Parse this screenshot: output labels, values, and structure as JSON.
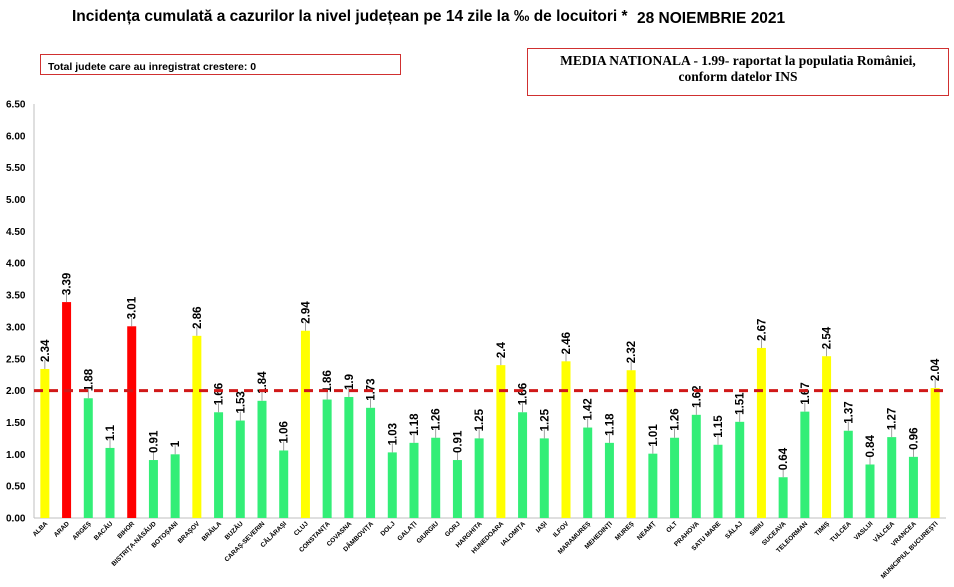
{
  "title": "Incidența cumulată a cazurilor la nivel județean pe 14 zile la ‰ de locuitori *",
  "date": "28 NOIEMBRIE 2021",
  "growth_box": "Total judete care au inregistrat crestere: 0",
  "national_box": {
    "line1": "MEDIA NATIONALA - 1.99-  raportat la populatia României,",
    "line2": "conform datelor INS"
  },
  "colors": {
    "high": "#ff0000",
    "medium": "#ffff00",
    "low": "#33ee77",
    "average_line": "#d01818",
    "label_leader": "#888888"
  },
  "chart_data": {
    "type": "bar",
    "title": "Incidența cumulată a cazurilor la nivel județean pe 14 zile la ‰ de locuitori *",
    "ylim": [
      0,
      6.5
    ],
    "yticks": [
      "0.00",
      "0.50",
      "1.00",
      "1.50",
      "2.00",
      "2.50",
      "3.00",
      "3.50",
      "4.00",
      "4.50",
      "5.00",
      "5.50",
      "6.00",
      "6.50"
    ],
    "average_line": 2.0,
    "grid": false,
    "categories": [
      "ALBA",
      "ARAD",
      "ARGEȘ",
      "BACĂU",
      "BIHOR",
      "BISTRIȚA-NĂSĂUD",
      "BOTOȘANI",
      "BRAȘOV",
      "BRĂILA",
      "BUZĂU",
      "CARAȘ-SEVERIN",
      "CĂLĂRAȘI",
      "CLUJ",
      "CONSTANȚA",
      "COVASNA",
      "DÂMBOVIȚA",
      "DOLJ",
      "GALAȚI",
      "GIURGIU",
      "GORJ",
      "HARGHITA",
      "HUNEDOARA",
      "IALOMIȚA",
      "IAȘI",
      "ILFOV",
      "MARAMUREȘ",
      "MEHEDINȚI",
      "MUREȘ",
      "NEAMȚ",
      "OLT",
      "PRAHOVA",
      "SATU MARE",
      "SĂLAJ",
      "SIBIU",
      "SUCEAVA",
      "TELEORMAN",
      "TIMIȘ",
      "TULCEA",
      "VASLUI",
      "VÂLCEA",
      "VRANCEA",
      "MUNICIPIUL BUCUREȘTI"
    ],
    "values": [
      2.34,
      3.39,
      1.88,
      1.1,
      3.01,
      0.91,
      1,
      2.86,
      1.66,
      1.53,
      1.84,
      1.06,
      2.94,
      1.86,
      1.9,
      1.73,
      1.03,
      1.18,
      1.26,
      0.91,
      1.25,
      2.4,
      1.66,
      1.25,
      2.46,
      1.42,
      1.18,
      2.32,
      1.01,
      1.26,
      1.62,
      1.15,
      1.51,
      2.67,
      0.64,
      1.67,
      2.54,
      1.37,
      0.84,
      1.27,
      0.96,
      2.04
    ],
    "value_labels": [
      "2.34",
      "3.39",
      "1.88",
      "1.1",
      "3.01",
      "0.91",
      "1",
      "2.86",
      "1.66",
      "1.53",
      "1.84",
      "1.06",
      "2.94",
      "1.86",
      "1.9",
      "1.73",
      "1.03",
      "1.18",
      "1.26",
      "0.91",
      "1.25",
      "2.4",
      "1.66",
      "1.25",
      "2.46",
      "1.42",
      "1.18",
      "2.32",
      "1.01",
      "1.26",
      "1.62",
      "1.15",
      "1.51",
      "2.67",
      "0.64",
      "1.67",
      "2.54",
      "1.37",
      "0.84",
      "1.27",
      "0.96",
      "2.04"
    ],
    "bar_colors": [
      "#ffff00",
      "#ff0000",
      "#33ee77",
      "#33ee77",
      "#ff0000",
      "#33ee77",
      "#33ee77",
      "#ffff00",
      "#33ee77",
      "#33ee77",
      "#33ee77",
      "#33ee77",
      "#ffff00",
      "#33ee77",
      "#33ee77",
      "#33ee77",
      "#33ee77",
      "#33ee77",
      "#33ee77",
      "#33ee77",
      "#33ee77",
      "#ffff00",
      "#33ee77",
      "#33ee77",
      "#ffff00",
      "#33ee77",
      "#33ee77",
      "#ffff00",
      "#33ee77",
      "#33ee77",
      "#33ee77",
      "#33ee77",
      "#33ee77",
      "#ffff00",
      "#33ee77",
      "#33ee77",
      "#ffff00",
      "#33ee77",
      "#33ee77",
      "#33ee77",
      "#33ee77",
      "#ffff00"
    ]
  }
}
